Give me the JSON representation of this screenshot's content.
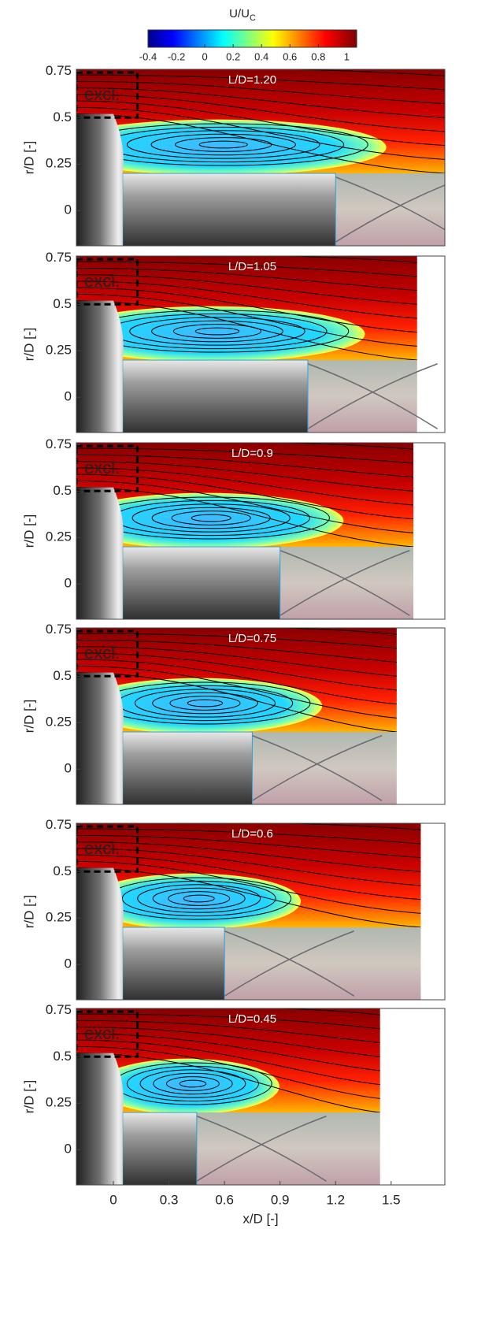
{
  "colorbar": {
    "label": "U/U",
    "label_sub": "C",
    "lim": [
      -0.4,
      1.07
    ],
    "ticks": [
      -0.4,
      -0.2,
      0,
      0.2,
      0.4,
      0.6,
      0.8,
      1
    ]
  },
  "chart_data": [
    {
      "type": "field",
      "annotation": "L/D=1.20",
      "L": 1.2,
      "excl": "excl.",
      "ylabel": "r/D [-]",
      "xlim": [
        -0.2,
        1.79
      ],
      "ylim": [
        -0.19,
        0.76
      ],
      "yticks": [
        0.75,
        0.5,
        0.25,
        0
      ]
    },
    {
      "type": "field",
      "annotation": "L/D=1.05",
      "L": 1.05,
      "excl": "excl.",
      "ylabel": "r/D [-]",
      "xlim": [
        -0.2,
        1.79
      ],
      "ylim": [
        -0.19,
        0.76
      ],
      "yticks": [
        0.75,
        0.5,
        0.25,
        0
      ]
    },
    {
      "type": "field",
      "annotation": "L/D=0.9",
      "L": 0.9,
      "excl": "excl.",
      "ylabel": "r/D [-]",
      "xlim": [
        -0.2,
        1.79
      ],
      "ylim": [
        -0.19,
        0.76
      ],
      "yticks": [
        0.75,
        0.5,
        0.25,
        0
      ]
    },
    {
      "type": "field",
      "annotation": "L/D=0.75",
      "L": 0.75,
      "excl": "excl.",
      "ylabel": "r/D [-]",
      "xlim": [
        -0.2,
        1.79
      ],
      "ylim": [
        -0.19,
        0.76
      ],
      "yticks": [
        0.75,
        0.5,
        0.25,
        0
      ]
    },
    {
      "type": "field",
      "annotation": "L/D=0.6",
      "L": 0.6,
      "excl": "excl.",
      "ylabel": "r/D [-]",
      "xlim": [
        -0.2,
        1.79
      ],
      "ylim": [
        -0.19,
        0.76
      ],
      "yticks": [
        0.75,
        0.5,
        0.25,
        0
      ]
    },
    {
      "type": "field",
      "annotation": "L/D=0.45",
      "L": 0.45,
      "excl": "excl.",
      "ylabel": "r/D [-]",
      "xlim": [
        -0.2,
        1.79
      ],
      "ylim": [
        -0.19,
        0.76
      ],
      "yticks": [
        0.75,
        0.5,
        0.25,
        0
      ],
      "xticks": [
        0,
        0.3,
        0.6,
        0.9,
        1.2,
        1.5
      ],
      "xlabel": "x/D [-]"
    }
  ]
}
